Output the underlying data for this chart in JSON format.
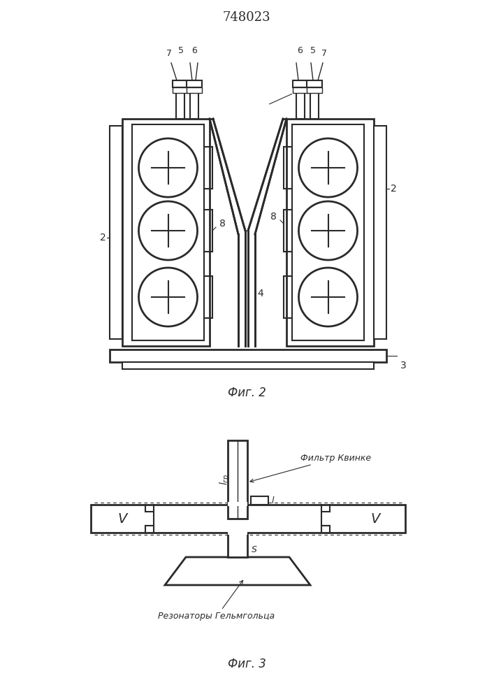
{
  "title": "748023",
  "fig2_label": "Фиг. 2",
  "fig3_label": "Фиг. 3",
  "filter_label": "Фильтр Квинке",
  "resonator_label": "Резонаторы Гельмгольца",
  "bg_color": "#ffffff",
  "line_color": "#2a2a2a"
}
